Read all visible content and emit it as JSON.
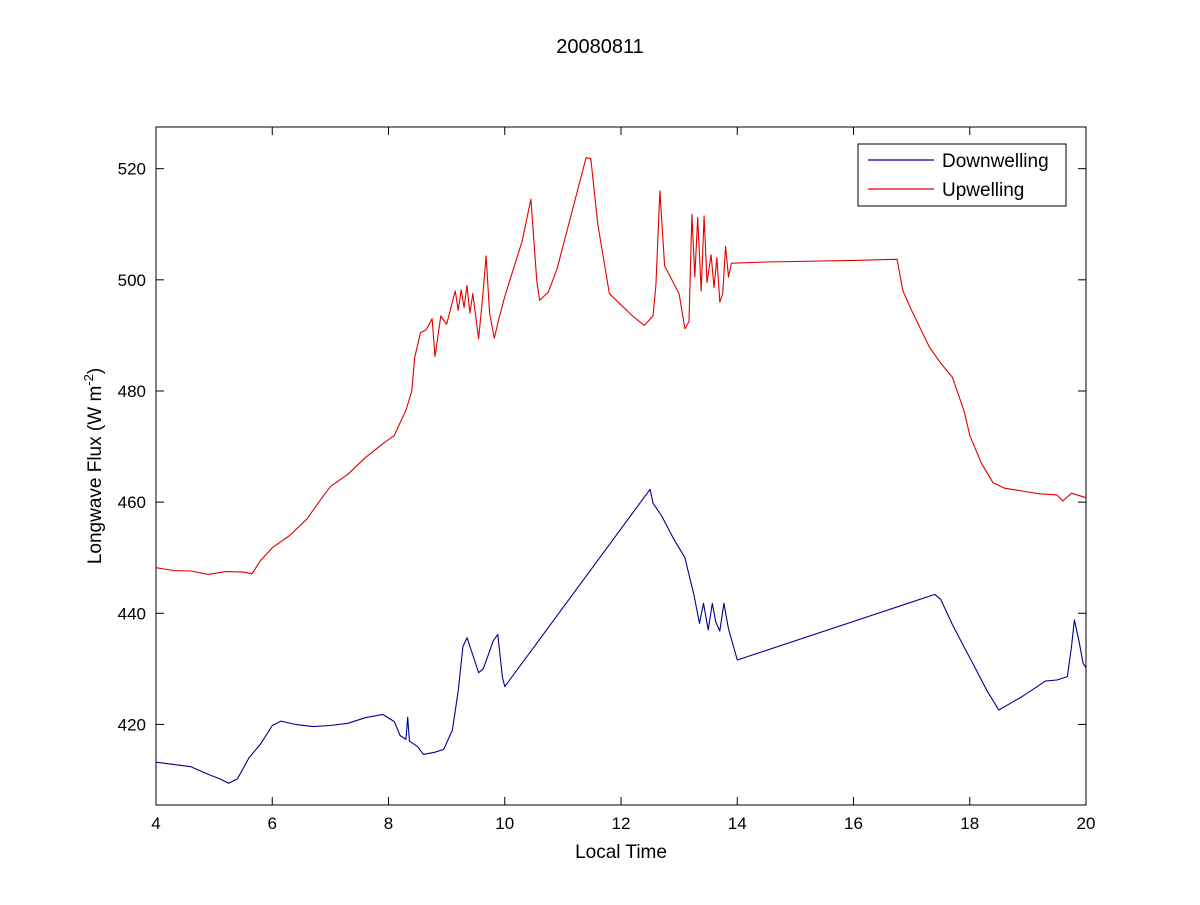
{
  "chart_data": {
    "type": "line",
    "title": "20080811",
    "xlabel": "Local Time",
    "ylabel": "Longwave Flux (W m",
    "ylabel_sup": "-2",
    "ylabel_end": ")",
    "xlim": [
      4,
      20
    ],
    "ylim": [
      405.5,
      527.5
    ],
    "xticks": [
      4,
      6,
      8,
      10,
      12,
      14,
      16,
      18,
      20
    ],
    "yticks": [
      420,
      440,
      460,
      480,
      500,
      520
    ],
    "grid": false,
    "legend_position": "top-right",
    "series": [
      {
        "name": "Downwelling",
        "color": "#00008b",
        "points": [
          [
            4.0,
            413.2
          ],
          [
            4.3,
            412.8
          ],
          [
            4.6,
            412.4
          ],
          [
            4.9,
            411.0
          ],
          [
            5.1,
            410.2
          ],
          [
            5.25,
            409.4
          ],
          [
            5.4,
            410.2
          ],
          [
            5.6,
            414.0
          ],
          [
            5.8,
            416.5
          ],
          [
            6.0,
            419.8
          ],
          [
            6.15,
            420.6
          ],
          [
            6.4,
            420.0
          ],
          [
            6.7,
            419.6
          ],
          [
            7.0,
            419.8
          ],
          [
            7.3,
            420.2
          ],
          [
            7.6,
            421.2
          ],
          [
            7.9,
            421.8
          ],
          [
            8.1,
            420.5
          ],
          [
            8.2,
            418.0
          ],
          [
            8.3,
            417.3
          ],
          [
            8.33,
            421.3
          ],
          [
            8.36,
            417.0
          ],
          [
            8.5,
            416.0
          ],
          [
            8.6,
            414.6
          ],
          [
            8.8,
            415.0
          ],
          [
            8.95,
            415.5
          ],
          [
            9.1,
            419.0
          ],
          [
            9.2,
            426.0
          ],
          [
            9.28,
            434.0
          ],
          [
            9.35,
            435.6
          ],
          [
            9.45,
            432.5
          ],
          [
            9.55,
            429.3
          ],
          [
            9.63,
            430.0
          ],
          [
            9.7,
            432.0
          ],
          [
            9.8,
            435.0
          ],
          [
            9.88,
            436.2
          ],
          [
            9.96,
            428.5
          ],
          [
            10.0,
            426.8
          ],
          [
            12.5,
            462.3
          ],
          [
            12.55,
            459.8
          ],
          [
            12.7,
            457.5
          ],
          [
            12.9,
            453.5
          ],
          [
            13.1,
            450.0
          ],
          [
            13.15,
            447.8
          ],
          [
            13.25,
            443.5
          ],
          [
            13.35,
            438.2
          ],
          [
            13.42,
            441.8
          ],
          [
            13.5,
            437.0
          ],
          [
            13.57,
            441.8
          ],
          [
            13.63,
            438.5
          ],
          [
            13.7,
            436.8
          ],
          [
            13.77,
            441.8
          ],
          [
            13.85,
            437.2
          ],
          [
            14.0,
            431.6
          ],
          [
            17.4,
            443.4
          ],
          [
            17.5,
            442.5
          ],
          [
            17.7,
            438.0
          ],
          [
            17.9,
            434.0
          ],
          [
            18.1,
            430.0
          ],
          [
            18.3,
            426.0
          ],
          [
            18.5,
            422.6
          ],
          [
            18.7,
            423.8
          ],
          [
            18.9,
            425.0
          ],
          [
            19.1,
            426.4
          ],
          [
            19.3,
            427.8
          ],
          [
            19.5,
            428.0
          ],
          [
            19.68,
            428.6
          ],
          [
            19.75,
            434.0
          ],
          [
            19.8,
            438.8
          ],
          [
            19.88,
            435.0
          ],
          [
            19.95,
            431.0
          ],
          [
            20.0,
            430.2
          ]
        ]
      },
      {
        "name": "Upwelling",
        "color": "#e00000",
        "points": [
          [
            4.0,
            448.2
          ],
          [
            4.3,
            447.7
          ],
          [
            4.6,
            447.6
          ],
          [
            4.9,
            447.0
          ],
          [
            5.2,
            447.5
          ],
          [
            5.5,
            447.4
          ],
          [
            5.65,
            447.1
          ],
          [
            5.8,
            449.5
          ],
          [
            6.0,
            451.8
          ],
          [
            6.3,
            454.0
          ],
          [
            6.6,
            457.0
          ],
          [
            6.8,
            460.0
          ],
          [
            7.0,
            462.8
          ],
          [
            7.3,
            465.0
          ],
          [
            7.6,
            468.0
          ],
          [
            7.9,
            470.5
          ],
          [
            8.1,
            472.0
          ],
          [
            8.3,
            476.5
          ],
          [
            8.4,
            480.0
          ],
          [
            8.45,
            486.0
          ],
          [
            8.55,
            490.5
          ],
          [
            8.65,
            491.0
          ],
          [
            8.75,
            493.0
          ],
          [
            8.8,
            486.2
          ],
          [
            8.9,
            493.5
          ],
          [
            9.0,
            492.0
          ],
          [
            9.1,
            496.0
          ],
          [
            9.15,
            498.0
          ],
          [
            9.2,
            494.5
          ],
          [
            9.25,
            498.2
          ],
          [
            9.3,
            495.0
          ],
          [
            9.35,
            499.0
          ],
          [
            9.4,
            494.0
          ],
          [
            9.45,
            497.5
          ],
          [
            9.55,
            489.4
          ],
          [
            9.62,
            497.0
          ],
          [
            9.68,
            504.3
          ],
          [
            9.74,
            494.0
          ],
          [
            9.82,
            489.5
          ],
          [
            9.9,
            493.0
          ],
          [
            10.0,
            497.0
          ],
          [
            10.3,
            507.0
          ],
          [
            10.45,
            514.5
          ],
          [
            10.55,
            500.0
          ],
          [
            10.6,
            496.3
          ],
          [
            10.75,
            497.8
          ],
          [
            10.9,
            502.0
          ],
          [
            11.4,
            522.0
          ],
          [
            11.48,
            521.8
          ],
          [
            11.6,
            510.0
          ],
          [
            11.8,
            497.5
          ],
          [
            12.2,
            493.5
          ],
          [
            12.4,
            491.8
          ],
          [
            12.55,
            493.5
          ],
          [
            12.6,
            499.0
          ],
          [
            12.67,
            516.0
          ],
          [
            12.75,
            502.5
          ],
          [
            12.85,
            500.5
          ],
          [
            13.0,
            497.5
          ],
          [
            13.1,
            491.2
          ],
          [
            13.17,
            492.5
          ],
          [
            13.22,
            511.8
          ],
          [
            13.27,
            500.5
          ],
          [
            13.32,
            511.2
          ],
          [
            13.38,
            498.0
          ],
          [
            13.43,
            511.5
          ],
          [
            13.48,
            499.5
          ],
          [
            13.55,
            504.5
          ],
          [
            13.6,
            498.6
          ],
          [
            13.65,
            504.0
          ],
          [
            13.7,
            496.0
          ],
          [
            13.75,
            497.5
          ],
          [
            13.8,
            506.0
          ],
          [
            13.85,
            500.5
          ],
          [
            13.9,
            503.0
          ],
          [
            14.5,
            503.2
          ],
          [
            16.0,
            503.5
          ],
          [
            16.75,
            503.7
          ],
          [
            16.85,
            498.0
          ],
          [
            17.0,
            494.5
          ],
          [
            17.3,
            488.0
          ],
          [
            17.5,
            485.0
          ],
          [
            17.7,
            482.5
          ],
          [
            17.9,
            476.5
          ],
          [
            18.0,
            472.0
          ],
          [
            18.2,
            467.0
          ],
          [
            18.4,
            463.5
          ],
          [
            18.6,
            462.5
          ],
          [
            18.9,
            462.0
          ],
          [
            19.2,
            461.5
          ],
          [
            19.5,
            461.3
          ],
          [
            19.6,
            460.2
          ],
          [
            19.75,
            461.6
          ],
          [
            20.0,
            460.8
          ]
        ]
      }
    ]
  }
}
